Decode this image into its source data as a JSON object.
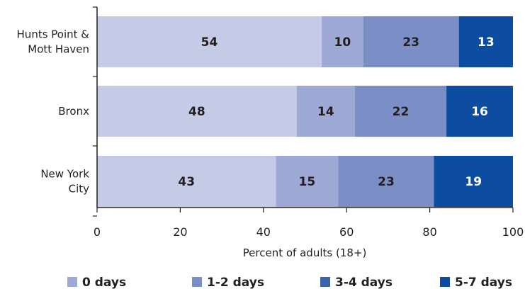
{
  "chart_data": {
    "type": "bar",
    "orientation": "horizontal",
    "stacked": true,
    "categories": [
      [
        "Hunts Point &",
        "Mott Haven"
      ],
      [
        "Bronx"
      ],
      [
        "New York",
        "City"
      ]
    ],
    "series": [
      {
        "name": "0 days",
        "values": [
          54,
          48,
          43
        ],
        "color": "#c5cbe6"
      },
      {
        "name": "1-2 days",
        "values": [
          10,
          14,
          15
        ],
        "color": "#9ea9d6"
      },
      {
        "name": "3-4 days",
        "values": [
          23,
          22,
          23
        ],
        "color": "#7b8fc6"
      },
      {
        "name": "5-7 days",
        "values": [
          13,
          16,
          19
        ],
        "color": "#0c4da2"
      }
    ],
    "label_colors": [
      "#231f20",
      "#231f20",
      "#231f20",
      "#ffffff"
    ],
    "legend_swatch_colors": [
      "#9ea9d6",
      "#7b8fc6",
      "#3b64ad",
      "#0c4da2"
    ],
    "xlim": [
      0,
      100
    ],
    "xticks": [
      0,
      20,
      40,
      60,
      80,
      100
    ],
    "xlabel": "Percent of adults (18+)",
    "title": "",
    "grid": false,
    "legend_position": "bottom"
  }
}
